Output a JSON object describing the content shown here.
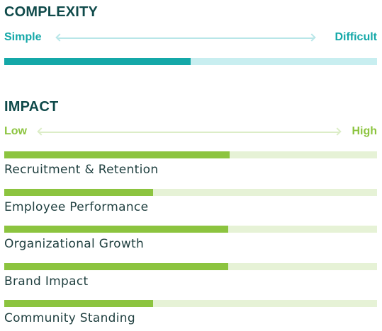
{
  "colors": {
    "heading": "#0f4a4a",
    "complexity_fill": "#14a8a8",
    "complexity_track": "#c8eef0",
    "complexity_arrow": "#b8e6e8",
    "impact_fill": "#8cc43f",
    "impact_track": "#e6f2d6",
    "impact_arrow": "#dcedc7"
  },
  "complexity": {
    "title": "COMPLEXITY",
    "low_label": "Simple",
    "high_label": "Difficult",
    "level": 0.5
  },
  "impact": {
    "title": "IMPACT",
    "low_label": "Low",
    "high_label": "High",
    "items": [
      {
        "label": "Recruitment & Retention",
        "level": 0.605
      },
      {
        "label": "Employee Performance",
        "level": 0.4
      },
      {
        "label": "Organizational Growth",
        "level": 0.6
      },
      {
        "label": "Brand Impact",
        "level": 0.6
      },
      {
        "label": "Community Standing",
        "level": 0.4
      }
    ]
  }
}
